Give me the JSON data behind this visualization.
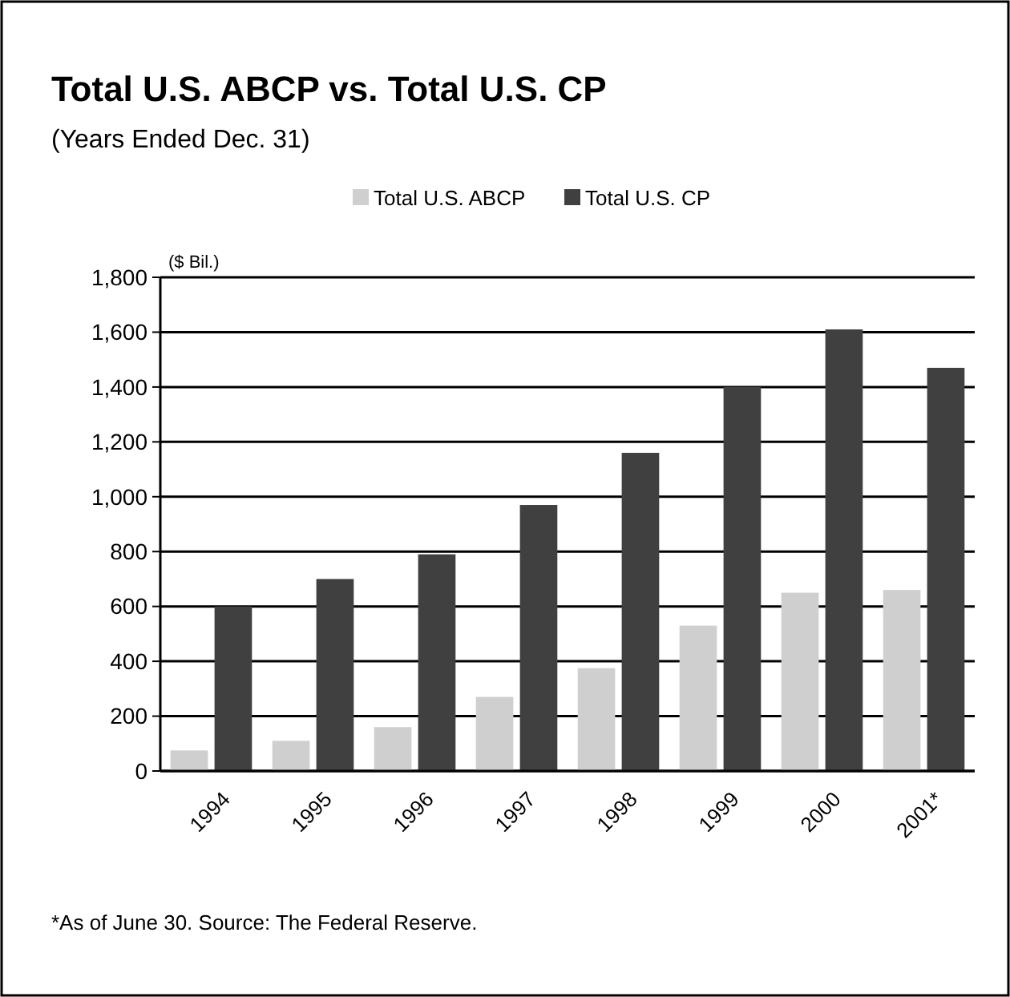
{
  "chart_data": {
    "type": "bar",
    "title": "Total U.S. ABCP vs. Total U.S. CP",
    "subtitle": "(Years Ended Dec. 31)",
    "ylabel": "($ Bil.)",
    "categories": [
      "1994",
      "1995",
      "1996",
      "1997",
      "1998",
      "1999",
      "2000",
      "2001*"
    ],
    "series": [
      {
        "name": "Total U.S. ABCP",
        "color": "#cfcfcf",
        "values": [
          75,
          110,
          160,
          270,
          375,
          530,
          650,
          660
        ]
      },
      {
        "name": "Total U.S. CP",
        "color": "#404040",
        "values": [
          600,
          700,
          790,
          970,
          1160,
          1400,
          1610,
          1470
        ]
      }
    ],
    "ylim": [
      0,
      1800
    ],
    "yticks": [
      0,
      {
        "value": 200,
        "label": "200"
      },
      {
        "value": 400,
        "label": "400"
      },
      {
        "value": 600,
        "label": "600"
      },
      {
        "value": 800,
        "label": "800"
      },
      {
        "value": 1000,
        "label": "1,000"
      },
      {
        "value": 1200,
        "label": "1,200"
      },
      {
        "value": 1400,
        "label": "1,400"
      },
      {
        "value": 1600,
        "label": "1,600"
      },
      {
        "value": 1800,
        "label": "1,800"
      }
    ],
    "grid": "y",
    "legend": "top",
    "annotations": [
      "*As of June 30. Source: The Federal Reserve."
    ]
  }
}
